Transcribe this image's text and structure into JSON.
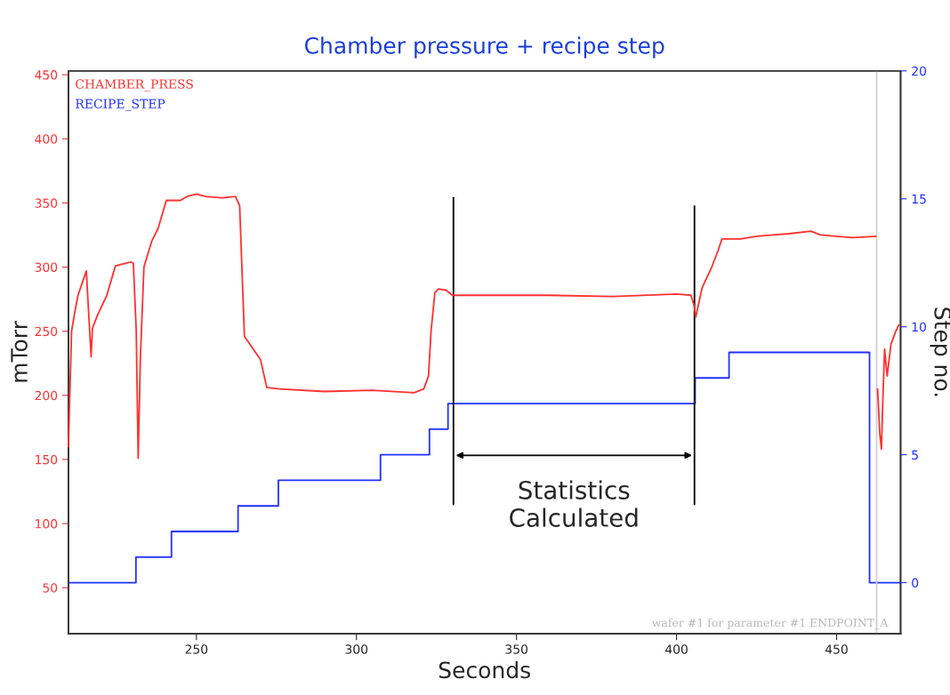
{
  "chart_data": {
    "type": "line",
    "title": "Chamber pressure + recipe step",
    "xlabel": "Seconds",
    "ylabel": "mTorr",
    "y2label": "Step no.",
    "xlim": [
      210,
      470
    ],
    "xticks": [
      250,
      300,
      350,
      400,
      450
    ],
    "ylim": [
      14,
      453
    ],
    "yticks": [
      50,
      100,
      150,
      200,
      250,
      300,
      350,
      400,
      450
    ],
    "y2lim": [
      -2,
      20
    ],
    "y2ticks": [
      0,
      5,
      10,
      15,
      20
    ],
    "legend": "top left",
    "grid": false,
    "series": [
      {
        "name": "CHAMBER_PRESS",
        "color": "#ff3030",
        "x": [
          210,
          210.3,
          211,
          212,
          213,
          215.6,
          217.1,
          217.5,
          219,
          222,
          224.7,
          228,
          229.5,
          230.3,
          231.2,
          231.8,
          232.5,
          233.6,
          236,
          238,
          240.6,
          245,
          247,
          250,
          253,
          258,
          262.2,
          263.5,
          265,
          270,
          272,
          276,
          290,
          305,
          318,
          321,
          322.5,
          323.3,
          324.5,
          325.6,
          328,
          330,
          335,
          360,
          380,
          400,
          404.5,
          405.5,
          406,
          408,
          411,
          413,
          414.2,
          420,
          425,
          430,
          435,
          442,
          445,
          450,
          455,
          462.3,
          462.5,
          462.8,
          463.5,
          464,
          464.5,
          465,
          465.8,
          467,
          468.5,
          469.5
        ],
        "values": [
          160,
          188,
          250,
          265,
          278,
          297,
          230,
          252,
          262,
          278,
          301,
          303,
          304,
          303,
          250,
          151,
          230,
          300,
          320,
          330,
          352,
          352,
          355,
          357,
          355,
          354,
          355,
          348,
          246,
          228,
          206,
          205,
          203,
          204,
          202,
          205,
          215,
          250,
          280,
          283,
          282,
          278,
          278,
          278,
          277,
          279,
          278,
          270,
          261,
          284,
          300,
          313,
          322,
          322,
          324,
          325,
          326,
          328,
          325,
          324,
          323,
          324,
          null,
          205,
          170,
          158,
          200,
          236,
          215,
          240,
          250,
          255
        ]
      },
      {
        "name": "RECIPE_STEP",
        "color": "#2030ff",
        "type": "step",
        "axis": "y2",
        "x": [
          210,
          231.1,
          242.2,
          263,
          275.6,
          307.5,
          322.8,
          328.6,
          405.8,
          416.4,
          460.3,
          470
        ],
        "values": [
          0,
          1,
          2,
          3,
          4,
          5,
          6,
          7,
          8,
          9,
          0,
          0
        ]
      }
    ],
    "ref_lines": [
      {
        "axis": "x",
        "value": 330.3,
        "color": "#000000"
      },
      {
        "axis": "x",
        "value": 405.6,
        "color": "#000000"
      },
      {
        "axis": "x",
        "value": 462.5,
        "color": "#d0d0d0"
      }
    ],
    "annotations": [
      "Statistics\nCalculated",
      "wafer #1 for parameter #1 ENDPOINT_A"
    ]
  }
}
